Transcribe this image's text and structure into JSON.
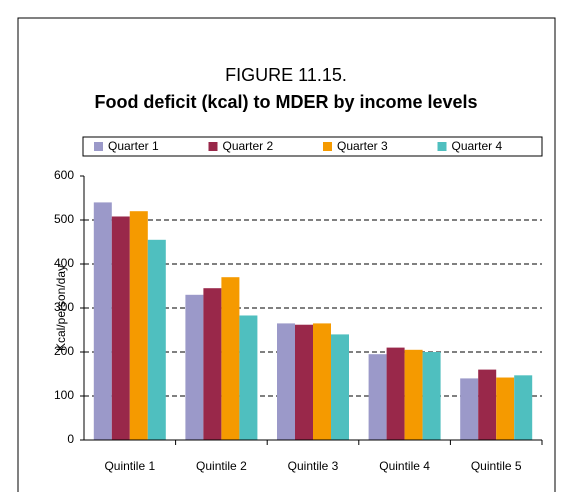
{
  "chart_data": {
    "type": "bar",
    "title": "FIGURE 11.15.",
    "subtitle": "Food deficit (kcal) to MDER by income levels",
    "y_label": "Kcal/person/day",
    "categories": [
      "Quintile 1",
      "Quintile 2",
      "Quintile 3",
      "Quintile 4",
      "Quintile 5"
    ],
    "series": [
      {
        "name": "Quarter 1",
        "color": "#9b99c9",
        "values": [
          540,
          330,
          265,
          195,
          140
        ]
      },
      {
        "name": "Quarter 2",
        "color": "#99284a",
        "values": [
          508,
          345,
          262,
          210,
          160
        ]
      },
      {
        "name": "Quarter 3",
        "color": "#f59a00",
        "values": [
          520,
          370,
          265,
          205,
          142
        ]
      },
      {
        "name": "Quarter 4",
        "color": "#4fbfbf",
        "values": [
          455,
          283,
          240,
          200,
          147
        ]
      }
    ],
    "ylim": [
      0,
      600
    ],
    "yticks": [
      0,
      100,
      200,
      300,
      400,
      500,
      600
    ],
    "grid": true,
    "legend": "top"
  }
}
